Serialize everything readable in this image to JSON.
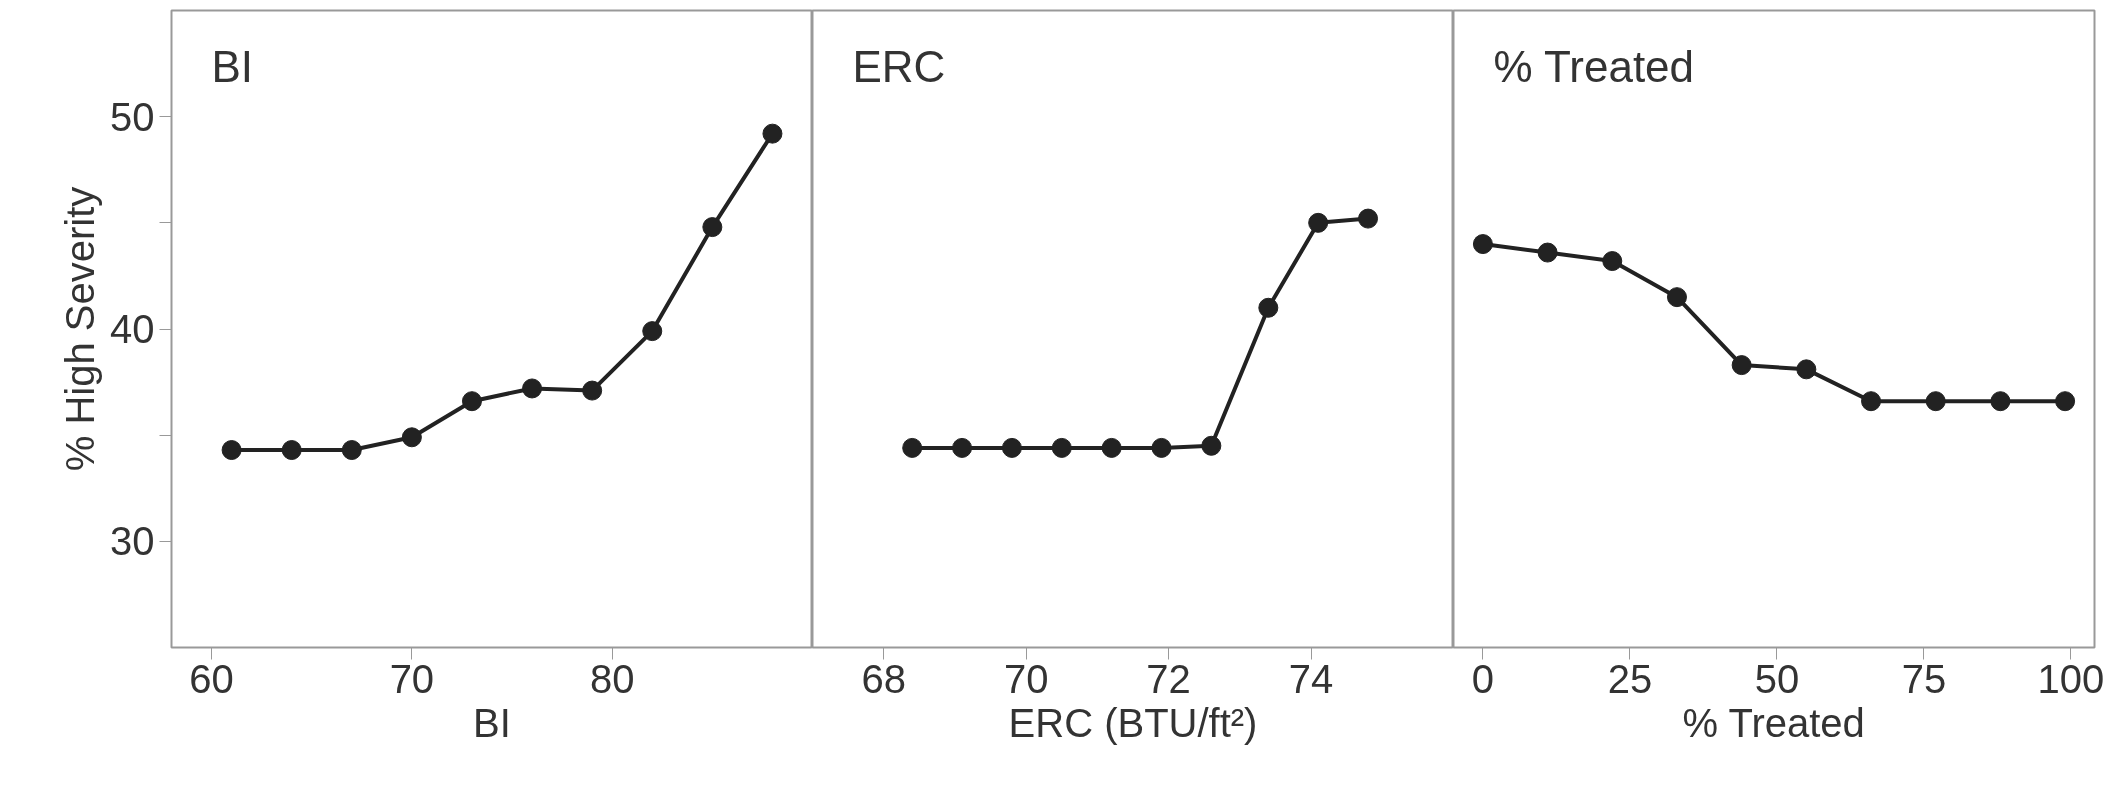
{
  "chart_data": [
    {
      "type": "line",
      "title": "BI",
      "xlabel": "BI",
      "ylabel": "% High Severity",
      "marker": "circle",
      "line_style": "solid",
      "grid": false,
      "x": [
        61,
        64,
        67,
        70,
        73,
        76,
        79,
        82,
        85,
        88
      ],
      "series": [
        {
          "color": "#222222",
          "values": [
            34.3,
            34.3,
            34.3,
            34.9,
            36.6,
            37.2,
            37.1,
            39.9,
            44.8,
            49.2
          ]
        }
      ],
      "xlim": [
        58,
        90
      ],
      "xticks": [
        60,
        70,
        80
      ],
      "ylim": [
        25,
        55
      ],
      "yticks": [
        {
          "value": 30,
          "label": "30"
        },
        {
          "value": 35,
          "label": null
        },
        {
          "value": 40,
          "label": "40"
        },
        {
          "value": 45,
          "label": null
        },
        {
          "value": 50,
          "label": "50"
        }
      ]
    },
    {
      "type": "line",
      "title": "ERC",
      "xlabel": "ERC (BTU/ft²)",
      "marker": "circle",
      "line_style": "solid",
      "grid": false,
      "tick_labels": "x",
      "x": [
        68.4,
        69.1,
        69.8,
        70.5,
        71.2,
        71.9,
        72.6,
        73.4,
        74.1,
        74.8
      ],
      "series": [
        {
          "color": "#222222",
          "values": [
            34.4,
            34.4,
            34.4,
            34.4,
            34.4,
            34.4,
            34.5,
            41.0,
            45.0,
            45.2
          ]
        }
      ],
      "xlim": [
        67,
        76
      ],
      "xticks": [
        68,
        70,
        72,
        74
      ],
      "ylim": [
        25,
        55
      ]
    },
    {
      "type": "line",
      "title": "% Treated",
      "xlabel": "% Treated",
      "marker": "circle",
      "line_style": "solid",
      "grid": false,
      "tick_labels": "x",
      "x": [
        0,
        11,
        22,
        33,
        44,
        55,
        66,
        77,
        88,
        99
      ],
      "series": [
        {
          "color": "#222222",
          "values": [
            44.0,
            43.6,
            43.2,
            41.5,
            38.3,
            38.1,
            36.6,
            36.6,
            36.6,
            36.6
          ]
        }
      ],
      "xlim": [
        -5,
        104
      ],
      "xticks": [
        0,
        25,
        50,
        75,
        100
      ],
      "ylim": [
        25,
        55
      ]
    }
  ]
}
